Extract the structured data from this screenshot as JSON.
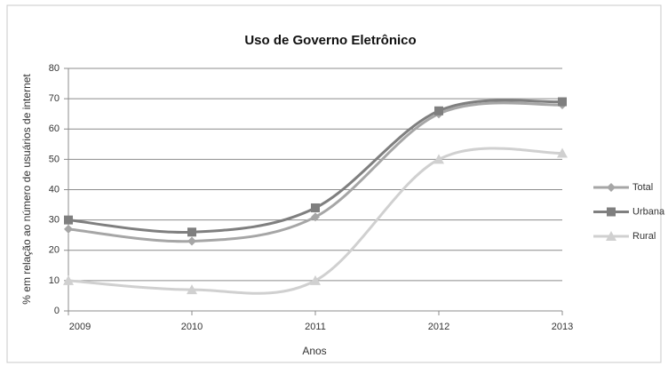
{
  "chart_data": {
    "type": "line",
    "title": "Uso de Governo Eletrônico",
    "xlabel": "Anos",
    "ylabel": "% em relação ao número de usuários de internet",
    "x": [
      2009,
      2010,
      2011,
      2012,
      2013
    ],
    "xlim": [
      2009,
      2013
    ],
    "xticks": [
      2009,
      2010,
      2011,
      2012,
      2013
    ],
    "ylim": [
      0,
      80
    ],
    "yticks": [
      0,
      10,
      20,
      30,
      40,
      50,
      60,
      70,
      80
    ],
    "grid": true,
    "legend": "right",
    "series": [
      {
        "name": "Total",
        "color": "#a6a6a6",
        "marker": "diamond",
        "values": [
          27,
          23,
          31,
          65,
          68
        ]
      },
      {
        "name": "Urbana",
        "color": "#7f7f7f",
        "marker": "square",
        "values": [
          30,
          26,
          34,
          66,
          69
        ]
      },
      {
        "name": "Rural",
        "color": "#d0d0d0",
        "marker": "triangle",
        "values": [
          10,
          7,
          10,
          50,
          52
        ]
      }
    ]
  }
}
